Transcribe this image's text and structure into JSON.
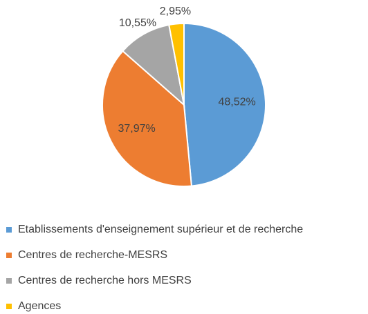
{
  "chart_data": {
    "type": "pie",
    "categories": [
      "Etablissements d'enseignement supérieur et de recherche",
      "Centres de recherche-MESRS",
      "Centres de recherche hors MESRS",
      "Agences"
    ],
    "values": [
      48.52,
      37.97,
      10.55,
      2.95
    ],
    "value_labels": [
      "48,52%",
      "37,97%",
      "10,55%",
      "2,95%"
    ],
    "colors": [
      "#5b9bd5",
      "#ed7d31",
      "#a5a5a5",
      "#ffc000"
    ],
    "legend": "bottom"
  }
}
